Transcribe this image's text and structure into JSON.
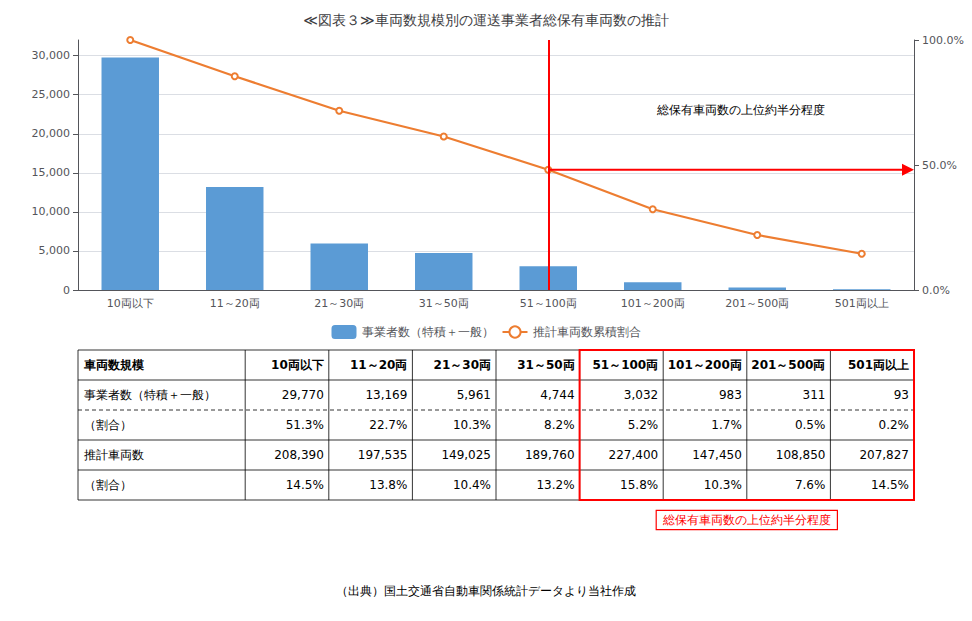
{
  "chart_data": {
    "type": "bar",
    "title": "≪図表３≫車両数規模別の運送事業者総保有車両数の推計",
    "categories": [
      "10両以下",
      "11～20両",
      "21～30両",
      "31～50両",
      "51～100両",
      "101～200両",
      "201～500両",
      "501両以上"
    ],
    "series": [
      {
        "name": "事業者数（特積＋一般）",
        "type": "bar",
        "color": "#5B9BD5",
        "values": [
          29770,
          13169,
          5961,
          4744,
          3032,
          983,
          311,
          93
        ]
      },
      {
        "name": "推計車両数累積割合",
        "type": "line",
        "color": "#ED7D31",
        "axis": "y2",
        "values": [
          100.0,
          85.5,
          71.7,
          61.4,
          48.1,
          32.3,
          22.0,
          14.5
        ]
      }
    ],
    "ylim": [
      0,
      32000
    ],
    "yticks": [
      0,
      {
        "value": 5000,
        "label": "5,000"
      },
      {
        "value": 10000,
        "label": "10,000"
      },
      {
        "value": 15000,
        "label": "15,000"
      },
      {
        "value": 20000,
        "label": "20,000"
      },
      {
        "value": 25000,
        "label": "25,000"
      },
      {
        "value": 30000,
        "label": "30,000"
      }
    ],
    "y2lim": [
      0,
      100
    ],
    "y2ticks": [
      {
        "value": 0,
        "label": "0.0%"
      },
      {
        "value": 50,
        "label": "50.0%"
      },
      {
        "value": 100,
        "label": "100.0%"
      }
    ],
    "grid": true,
    "legend": "bottom",
    "reference_line": {
      "x": "51～100両",
      "y2": 48.1,
      "color": "red"
    },
    "annotations": [
      {
        "text": "総保有車両数の上位約半分程度",
        "x": "101～200両",
        "y2": 72
      }
    ],
    "table": {
      "header": [
        "車両数規模",
        "10両以下",
        "11～20両",
        "21～30両",
        "31～50両",
        "51～100両",
        "101～200両",
        "201～500両",
        "501両以上"
      ],
      "rows": [
        {
          "label": "事業者数（特積＋一般）",
          "cells": [
            "29,770",
            "13,169",
            "5,961",
            "4,744",
            "3,032",
            "983",
            "311",
            "93"
          ]
        },
        {
          "label": "（割合）",
          "cells": [
            "51.3%",
            "22.7%",
            "10.3%",
            "8.2%",
            "5.2%",
            "1.7%",
            "0.5%",
            "0.2%"
          ]
        },
        {
          "label": "推計車両数",
          "cells": [
            "208,390",
            "197,535",
            "149,025",
            "189,760",
            "227,400",
            "147,450",
            "108,850",
            "207,827"
          ]
        },
        {
          "label": "（割合）",
          "cells": [
            "14.5%",
            "13.8%",
            "10.4%",
            "13.2%",
            "15.8%",
            "10.3%",
            "7.6%",
            "14.5%"
          ]
        }
      ],
      "highlight": {
        "from": "51～100両",
        "label": "総保有車両数の上位約半分程度",
        "color": "red"
      }
    },
    "source": "（出典）国土交通省自動車関係統計データより当社作成"
  }
}
